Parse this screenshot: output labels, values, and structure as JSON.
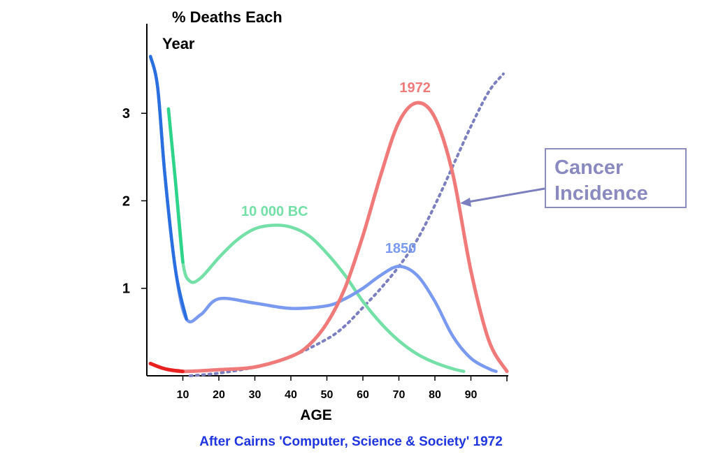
{
  "chart_data": {
    "type": "line",
    "ylabel_line1": "% Deaths Each",
    "ylabel_line2": "Year",
    "xlabel": "AGE",
    "caption": "After Cairns 'Computer, Science & Society' 1972",
    "xlim": [
      0,
      100
    ],
    "ylim": [
      0,
      3.8
    ],
    "x_ticks": [
      10,
      20,
      30,
      40,
      50,
      60,
      70,
      80,
      90
    ],
    "y_ticks": [
      1,
      2,
      3
    ],
    "colors": {
      "1972": "#f07a7a",
      "1850": "#7a9af0",
      "10 000 BC": "#74e0a8",
      "cancer": "#7b7fbf",
      "early_blue": "#2a6fe0",
      "early_green": "#2ed48a",
      "early_red": "#e82020"
    },
    "series": [
      {
        "name": "1972",
        "x": [
          1,
          5,
          10,
          20,
          30,
          40,
          45,
          50,
          55,
          60,
          65,
          70,
          75,
          80,
          85,
          90,
          95,
          100
        ],
        "y": [
          0.14,
          0.08,
          0.05,
          0.07,
          0.1,
          0.22,
          0.35,
          0.6,
          1.0,
          1.6,
          2.3,
          2.9,
          3.12,
          2.95,
          2.3,
          1.2,
          0.4,
          0.05
        ]
      },
      {
        "name": "1850",
        "x": [
          1,
          3,
          5,
          8,
          11,
          15,
          20,
          30,
          40,
          50,
          55,
          60,
          65,
          70,
          75,
          80,
          85,
          90,
          95,
          97
        ],
        "y": [
          3.65,
          3.3,
          2.3,
          1.2,
          0.65,
          0.7,
          0.88,
          0.83,
          0.77,
          0.8,
          0.88,
          1.0,
          1.15,
          1.25,
          1.15,
          0.85,
          0.45,
          0.2,
          0.08,
          0.05
        ]
      },
      {
        "name": "10 000 BC",
        "x": [
          6,
          8,
          10,
          12,
          15,
          20,
          25,
          30,
          35,
          40,
          45,
          50,
          55,
          60,
          65,
          70,
          75,
          80,
          85,
          88
        ],
        "y": [
          3.05,
          2.2,
          1.3,
          1.08,
          1.12,
          1.35,
          1.55,
          1.68,
          1.72,
          1.7,
          1.6,
          1.4,
          1.15,
          0.85,
          0.6,
          0.4,
          0.25,
          0.15,
          0.08,
          0.05
        ]
      },
      {
        "name": "Cancer Incidence",
        "x": [
          12,
          20,
          30,
          40,
          50,
          55,
          60,
          65,
          70,
          75,
          80,
          85,
          90,
          95,
          99
        ],
        "y": [
          0.0,
          0.03,
          0.1,
          0.22,
          0.42,
          0.57,
          0.78,
          1.0,
          1.25,
          1.55,
          1.95,
          2.4,
          2.85,
          3.25,
          3.45
        ]
      }
    ],
    "labels": {
      "1972": "1972",
      "1850": "1850",
      "bc": "10 000 BC",
      "cancer_line1": "Cancer",
      "cancer_line2": "Incidence"
    }
  }
}
